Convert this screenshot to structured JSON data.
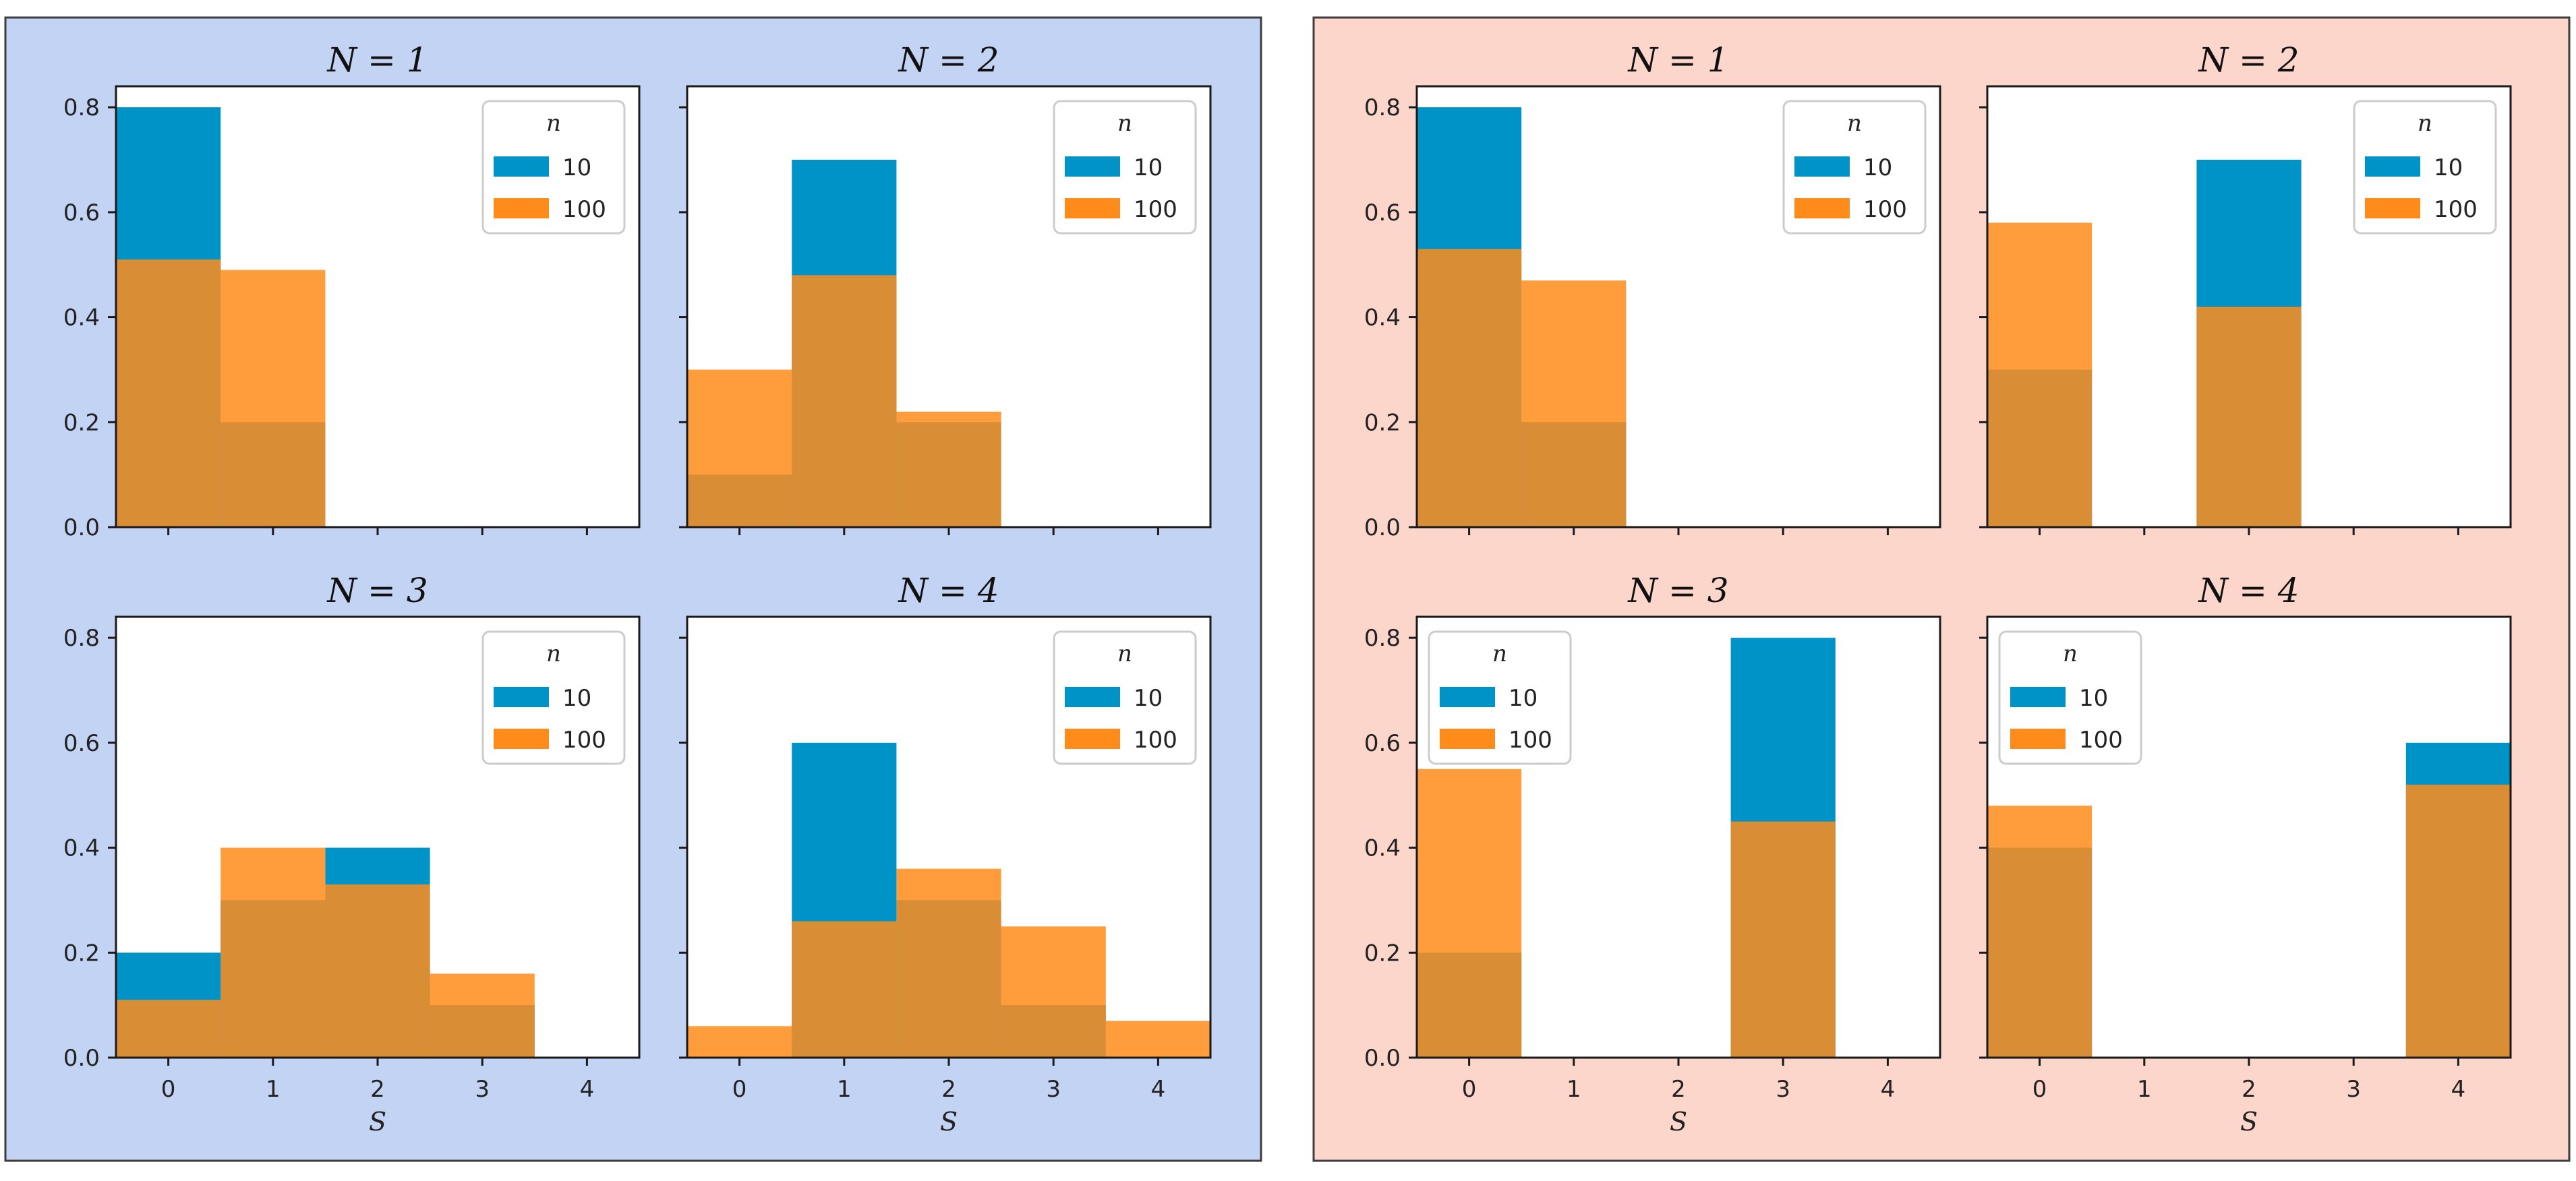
{
  "chart_data": {
    "type": "bar",
    "description_groups": 2,
    "categories": [
      "0",
      "1",
      "2",
      "3",
      "4"
    ],
    "ylim": [
      0,
      0.84
    ],
    "yticks": [
      "0.0",
      "0.2",
      "0.4",
      "0.6",
      "0.8"
    ],
    "xlabel": "S",
    "legend": {
      "title": "n",
      "entries": [
        "10",
        "100"
      ]
    },
    "colors": {
      "n10": "#0093C8",
      "n100": "#FF8C1A",
      "overlap": "#F2852A",
      "groupLeftBg": "#C2D3F4",
      "groupRightBg": "#FDD6CB"
    },
    "groups": [
      {
        "panels": [
          {
            "title": "N = 1",
            "legend_position": "top-right",
            "series": [
              {
                "name": "10",
                "values": [
                  0.8,
                  0.2,
                  0,
                  0,
                  0
                ]
              },
              {
                "name": "100",
                "values": [
                  0.51,
                  0.49,
                  0,
                  0,
                  0
                ]
              }
            ]
          },
          {
            "title": "N = 2",
            "legend_position": "top-right",
            "series": [
              {
                "name": "10",
                "values": [
                  0.1,
                  0.7,
                  0.2,
                  0,
                  0
                ]
              },
              {
                "name": "100",
                "values": [
                  0.3,
                  0.48,
                  0.22,
                  0,
                  0
                ]
              }
            ]
          },
          {
            "title": "N = 3",
            "legend_position": "top-right",
            "series": [
              {
                "name": "10",
                "values": [
                  0.2,
                  0.3,
                  0.4,
                  0.1,
                  0
                ]
              },
              {
                "name": "100",
                "values": [
                  0.11,
                  0.4,
                  0.33,
                  0.16,
                  0
                ]
              }
            ]
          },
          {
            "title": "N = 4",
            "legend_position": "top-right",
            "series": [
              {
                "name": "10",
                "values": [
                  0,
                  0.6,
                  0.3,
                  0.1,
                  0
                ]
              },
              {
                "name": "100",
                "values": [
                  0.06,
                  0.26,
                  0.36,
                  0.25,
                  0.07
                ]
              }
            ]
          }
        ]
      },
      {
        "panels": [
          {
            "title": "N = 1",
            "legend_position": "top-right",
            "series": [
              {
                "name": "10",
                "values": [
                  0.8,
                  0.2,
                  0,
                  0,
                  0
                ]
              },
              {
                "name": "100",
                "values": [
                  0.53,
                  0.47,
                  0,
                  0,
                  0
                ]
              }
            ]
          },
          {
            "title": "N = 2",
            "legend_position": "top-right",
            "series": [
              {
                "name": "10",
                "values": [
                  0.3,
                  0,
                  0.7,
                  0,
                  0
                ]
              },
              {
                "name": "100",
                "values": [
                  0.58,
                  0,
                  0.42,
                  0,
                  0
                ]
              }
            ]
          },
          {
            "title": "N = 3",
            "legend_position": "top-left",
            "series": [
              {
                "name": "10",
                "values": [
                  0.2,
                  0,
                  0,
                  0.8,
                  0
                ]
              },
              {
                "name": "100",
                "values": [
                  0.55,
                  0,
                  0,
                  0.45,
                  0
                ]
              }
            ]
          },
          {
            "title": "N = 4",
            "legend_position": "top-left",
            "series": [
              {
                "name": "10",
                "values": [
                  0.4,
                  0,
                  0,
                  0,
                  0.6
                ]
              },
              {
                "name": "100",
                "values": [
                  0.48,
                  0,
                  0,
                  0,
                  0.52
                ]
              }
            ]
          }
        ]
      }
    ]
  }
}
